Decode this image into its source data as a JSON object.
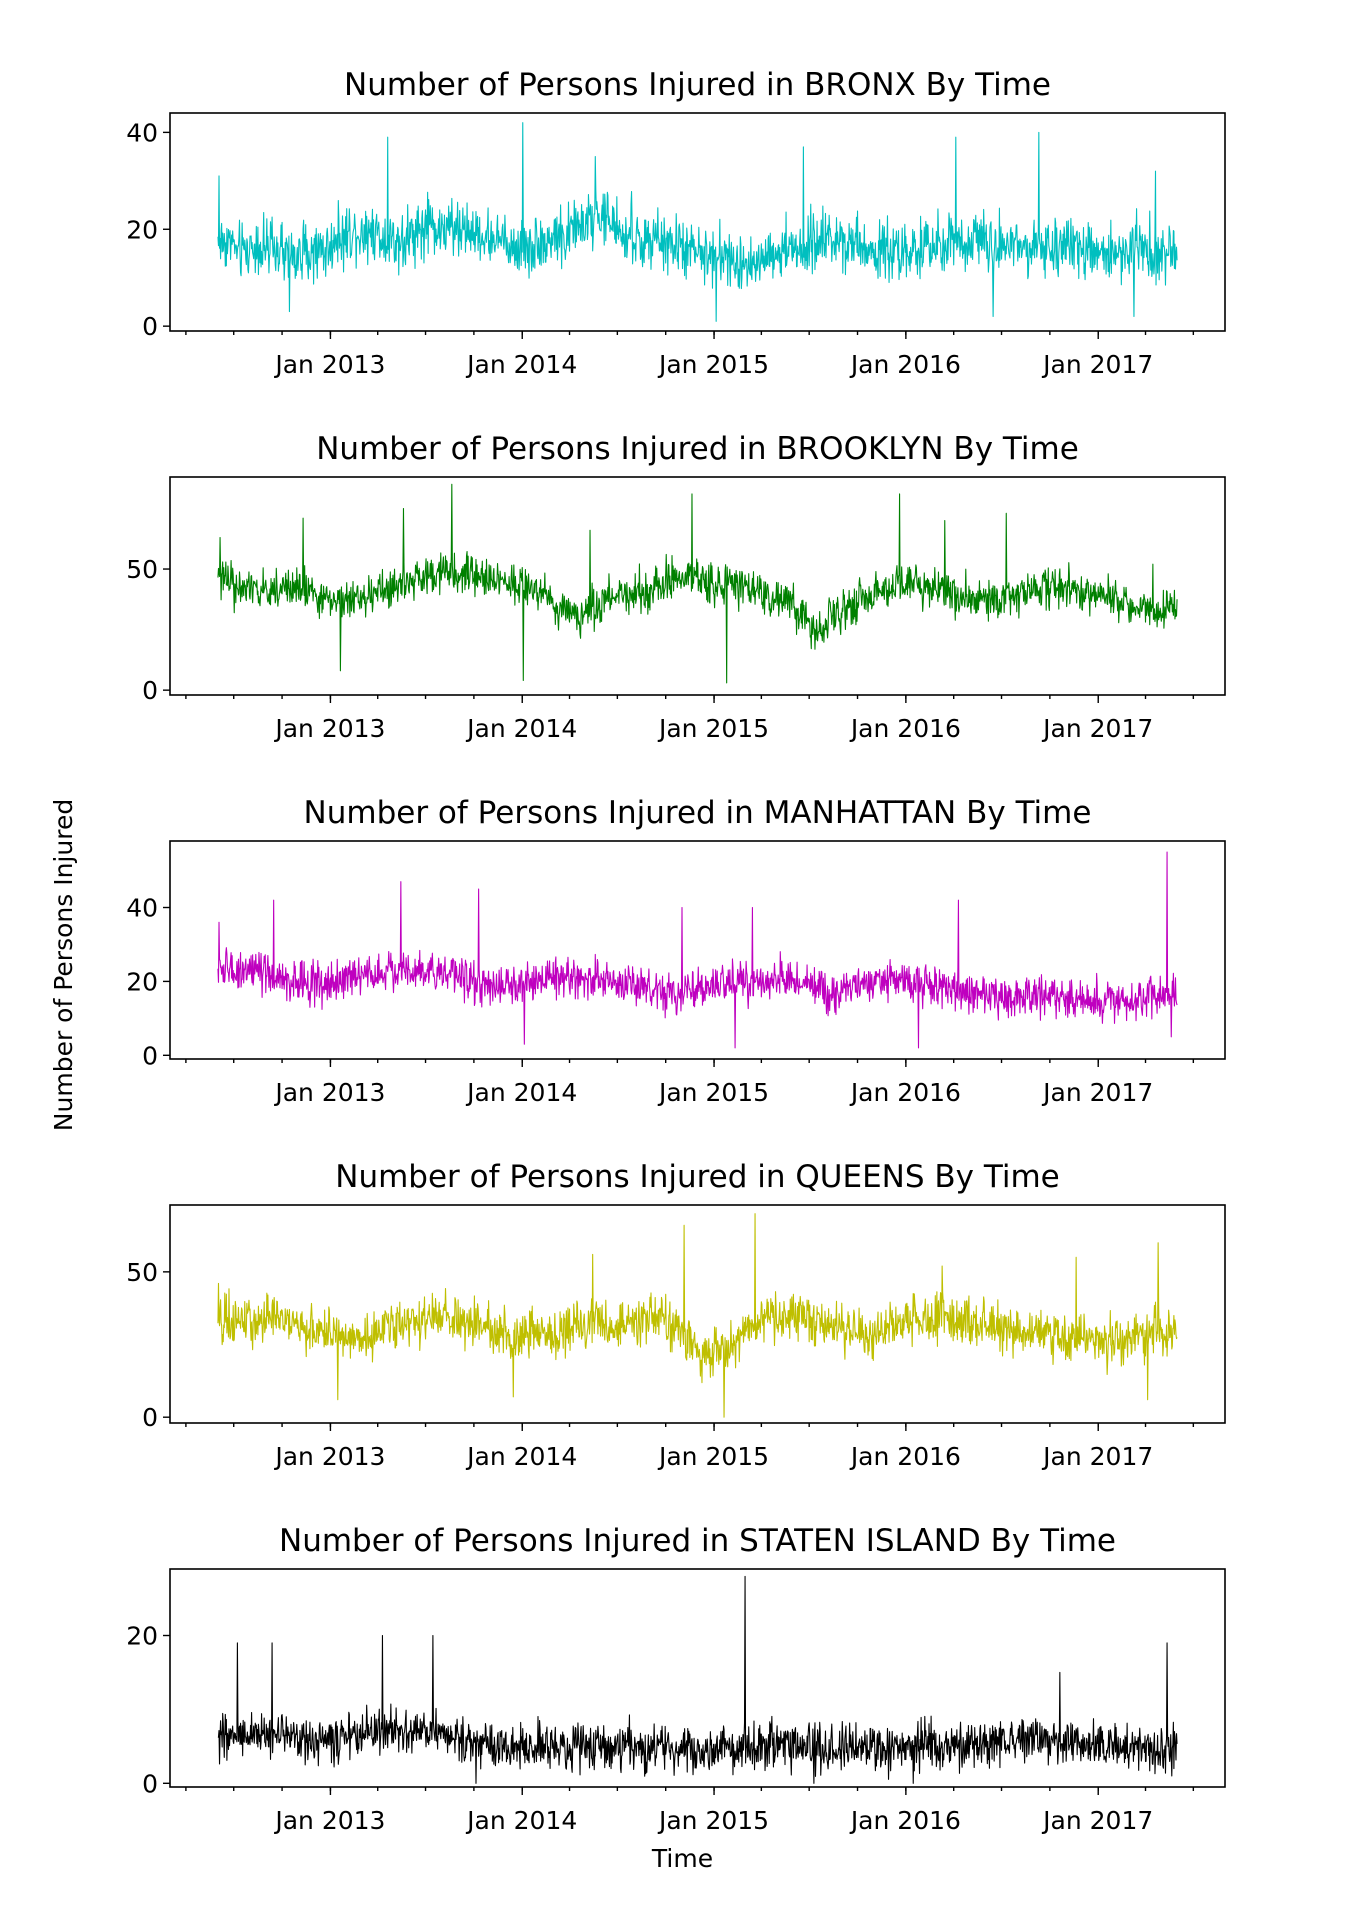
{
  "figure": {
    "shared_ylabel": "Number of Persons Injured",
    "shared_xlabel": "Time"
  },
  "chart_data": [
    {
      "type": "line",
      "title": "Number of Persons Injured in BRONX By Time",
      "xlabel": "",
      "ylabel": "",
      "color": "#00bfbf",
      "x_ticks": [
        "Jan 2013",
        "Jan 2014",
        "Jan 2015",
        "Jan 2016",
        "Jan 2017"
      ],
      "y_ticks": [
        "0",
        "20",
        "40"
      ],
      "ylim": [
        -1,
        44
      ],
      "x_range": [
        "2012-06-01",
        "2017-05-31"
      ],
      "monthly_mean": [
        17,
        15,
        16,
        15,
        14,
        15,
        15,
        17,
        19,
        19,
        18,
        17,
        19,
        20,
        19,
        19,
        18,
        17,
        16,
        16,
        17,
        18,
        20,
        22,
        21,
        18,
        17,
        17,
        16,
        15,
        14,
        14,
        12,
        13,
        14,
        15,
        15,
        17,
        18,
        17,
        16,
        15,
        15,
        15,
        15,
        16,
        17,
        18,
        17,
        17,
        16,
        16,
        15,
        15,
        15,
        15,
        15,
        16,
        15,
        15
      ],
      "noise_range": [
        -8,
        9
      ],
      "peaks": [
        {
          "x": "2012-06-03",
          "y": 31
        },
        {
          "x": "2013-04-20",
          "y": 39
        },
        {
          "x": "2014-01-02",
          "y": 42
        },
        {
          "x": "2014-05-20",
          "y": 35
        },
        {
          "x": "2015-06-20",
          "y": 37
        },
        {
          "x": "2016-04-05",
          "y": 39
        },
        {
          "x": "2016-09-10",
          "y": 40
        },
        {
          "x": "2017-04-20",
          "y": 32
        }
      ],
      "troughs": [
        {
          "x": "2012-10-15",
          "y": 3
        },
        {
          "x": "2015-01-05",
          "y": 1
        },
        {
          "x": "2016-06-15",
          "y": 2
        },
        {
          "x": "2017-03-10",
          "y": 2
        }
      ]
    },
    {
      "type": "line",
      "title": "Number of Persons Injured in BROOKLYN By Time",
      "xlabel": "",
      "ylabel": "",
      "color": "#008000",
      "x_ticks": [
        "Jan 2013",
        "Jan 2014",
        "Jan 2015",
        "Jan 2016",
        "Jan 2017"
      ],
      "y_ticks": [
        "0",
        "50"
      ],
      "ylim": [
        -2,
        88
      ],
      "x_range": [
        "2012-06-01",
        "2017-05-31"
      ],
      "monthly_mean": [
        45,
        41,
        40,
        41,
        42,
        40,
        37,
        36,
        38,
        38,
        40,
        42,
        46,
        48,
        48,
        47,
        46,
        45,
        44,
        42,
        38,
        32,
        30,
        34,
        38,
        39,
        40,
        42,
        45,
        46,
        44,
        43,
        42,
        40,
        38,
        37,
        30,
        25,
        30,
        35,
        38,
        40,
        42,
        44,
        42,
        40,
        38,
        37,
        36,
        38,
        40,
        42,
        42,
        42,
        40,
        38,
        36,
        34,
        32,
        32
      ],
      "noise_range": [
        -11,
        12
      ],
      "peaks": [
        {
          "x": "2012-06-05",
          "y": 63
        },
        {
          "x": "2012-11-10",
          "y": 71
        },
        {
          "x": "2013-05-20",
          "y": 75
        },
        {
          "x": "2013-08-20",
          "y": 85
        },
        {
          "x": "2014-05-10",
          "y": 66
        },
        {
          "x": "2014-11-20",
          "y": 81
        },
        {
          "x": "2015-12-20",
          "y": 81
        },
        {
          "x": "2016-03-15",
          "y": 70
        },
        {
          "x": "2016-07-10",
          "y": 73
        },
        {
          "x": "2017-04-15",
          "y": 52
        }
      ],
      "troughs": [
        {
          "x": "2014-01-03",
          "y": 4
        },
        {
          "x": "2015-01-25",
          "y": 3
        },
        {
          "x": "2013-01-20",
          "y": 8
        }
      ]
    },
    {
      "type": "line",
      "title": "Number of Persons Injured in MANHATTAN By Time",
      "xlabel": "",
      "ylabel": "",
      "color": "#bf00bf",
      "x_ticks": [
        "Jan 2013",
        "Jan 2014",
        "Jan 2015",
        "Jan 2016",
        "Jan 2017"
      ],
      "y_ticks": [
        "0",
        "20",
        "40"
      ],
      "ylim": [
        -1,
        58
      ],
      "x_range": [
        "2012-06-01",
        "2017-05-31"
      ],
      "monthly_mean": [
        22,
        22,
        21,
        20,
        19,
        19,
        18,
        19,
        20,
        21,
        22,
        22,
        22,
        22,
        21,
        20,
        18,
        17,
        18,
        19,
        20,
        20,
        20,
        20,
        19,
        18,
        17,
        16,
        15,
        16,
        17,
        18,
        19,
        19,
        19,
        19,
        18,
        17,
        16,
        17,
        18,
        19,
        20,
        19,
        18,
        17,
        16,
        16,
        15,
        14,
        14,
        15,
        15,
        15,
        14,
        14,
        13,
        14,
        15,
        15
      ],
      "noise_range": [
        -7,
        9
      ],
      "peaks": [
        {
          "x": "2012-06-03",
          "y": 36
        },
        {
          "x": "2012-09-15",
          "y": 42
        },
        {
          "x": "2013-05-15",
          "y": 47
        },
        {
          "x": "2013-10-10",
          "y": 45
        },
        {
          "x": "2014-11-01",
          "y": 40
        },
        {
          "x": "2015-03-15",
          "y": 40
        },
        {
          "x": "2016-04-10",
          "y": 42
        },
        {
          "x": "2017-05-12",
          "y": 55
        }
      ],
      "troughs": [
        {
          "x": "2014-01-05",
          "y": 3
        },
        {
          "x": "2015-02-10",
          "y": 2
        },
        {
          "x": "2016-01-25",
          "y": 2
        },
        {
          "x": "2017-05-20",
          "y": 5
        }
      ]
    },
    {
      "type": "line",
      "title": "Number of Persons Injured in QUEENS By Time",
      "xlabel": "",
      "ylabel": "",
      "color": "#bfbf00",
      "x_ticks": [
        "Jan 2013",
        "Jan 2014",
        "Jan 2015",
        "Jan 2016",
        "Jan 2017"
      ],
      "y_ticks": [
        "0",
        "50"
      ],
      "ylim": [
        -2,
        73
      ],
      "x_range": [
        "2012-06-01",
        "2017-05-31"
      ],
      "monthly_mean": [
        31,
        32,
        32,
        33,
        32,
        30,
        28,
        27,
        27,
        28,
        30,
        31,
        32,
        33,
        32,
        31,
        30,
        28,
        27,
        26,
        27,
        28,
        30,
        31,
        30,
        31,
        32,
        33,
        30,
        25,
        20,
        22,
        25,
        30,
        33,
        34,
        33,
        31,
        30,
        28,
        27,
        28,
        30,
        32,
        33,
        33,
        32,
        31,
        30,
        29,
        28,
        28,
        27,
        26,
        26,
        25,
        25,
        27,
        29,
        28
      ],
      "noise_range": [
        -11,
        13
      ],
      "peaks": [
        {
          "x": "2012-06-02",
          "y": 46
        },
        {
          "x": "2014-11-05",
          "y": 66
        },
        {
          "x": "2015-03-20",
          "y": 70
        },
        {
          "x": "2016-03-10",
          "y": 52
        },
        {
          "x": "2016-11-20",
          "y": 55
        },
        {
          "x": "2017-04-25",
          "y": 60
        },
        {
          "x": "2014-05-15",
          "y": 56
        }
      ],
      "troughs": [
        {
          "x": "2015-01-20",
          "y": 0
        },
        {
          "x": "2013-01-15",
          "y": 6
        },
        {
          "x": "2013-12-15",
          "y": 7
        },
        {
          "x": "2017-04-05",
          "y": 6
        }
      ]
    },
    {
      "type": "line",
      "title": "Number of Persons Injured in STATEN ISLAND By Time",
      "xlabel": "Time",
      "ylabel": "",
      "color": "#000000",
      "x_ticks": [
        "Jan 2013",
        "Jan 2014",
        "Jan 2015",
        "Jan 2016",
        "Jan 2017"
      ],
      "y_ticks": [
        "0",
        "20"
      ],
      "ylim": [
        -0.5,
        29
      ],
      "x_range": [
        "2012-06-01",
        "2017-05-31"
      ],
      "monthly_mean": [
        5.5,
        6,
        6.2,
        6.5,
        6,
        5.5,
        5.2,
        5.5,
        6,
        6.5,
        6.5,
        6.2,
        6.5,
        6.3,
        6,
        5,
        4.8,
        4.5,
        4.4,
        4.3,
        4.4,
        4.5,
        4.6,
        4.5,
        4.4,
        4.3,
        4.2,
        4.3,
        4.2,
        4,
        4.2,
        4.3,
        4.4,
        4.5,
        4.5,
        4.4,
        4.3,
        4.2,
        4.1,
        4,
        4.1,
        4.2,
        4.3,
        4.4,
        4.5,
        4.6,
        4.7,
        4.8,
        5,
        5.2,
        5.4,
        5.5,
        5.3,
        5.1,
        4.8,
        4.6,
        4.4,
        4.2,
        4.1,
        4
      ],
      "noise_range": [
        -4,
        5
      ],
      "peaks": [
        {
          "x": "2012-07-08",
          "y": 19
        },
        {
          "x": "2012-09-12",
          "y": 19
        },
        {
          "x": "2013-04-10",
          "y": 20
        },
        {
          "x": "2013-07-15",
          "y": 20
        },
        {
          "x": "2015-03-01",
          "y": 28
        },
        {
          "x": "2016-10-20",
          "y": 15
        },
        {
          "x": "2017-05-12",
          "y": 19
        }
      ],
      "troughs": [
        {
          "x": "2013-10-05",
          "y": 0
        },
        {
          "x": "2015-07-10",
          "y": 0
        },
        {
          "x": "2016-01-15",
          "y": 0
        }
      ]
    }
  ]
}
